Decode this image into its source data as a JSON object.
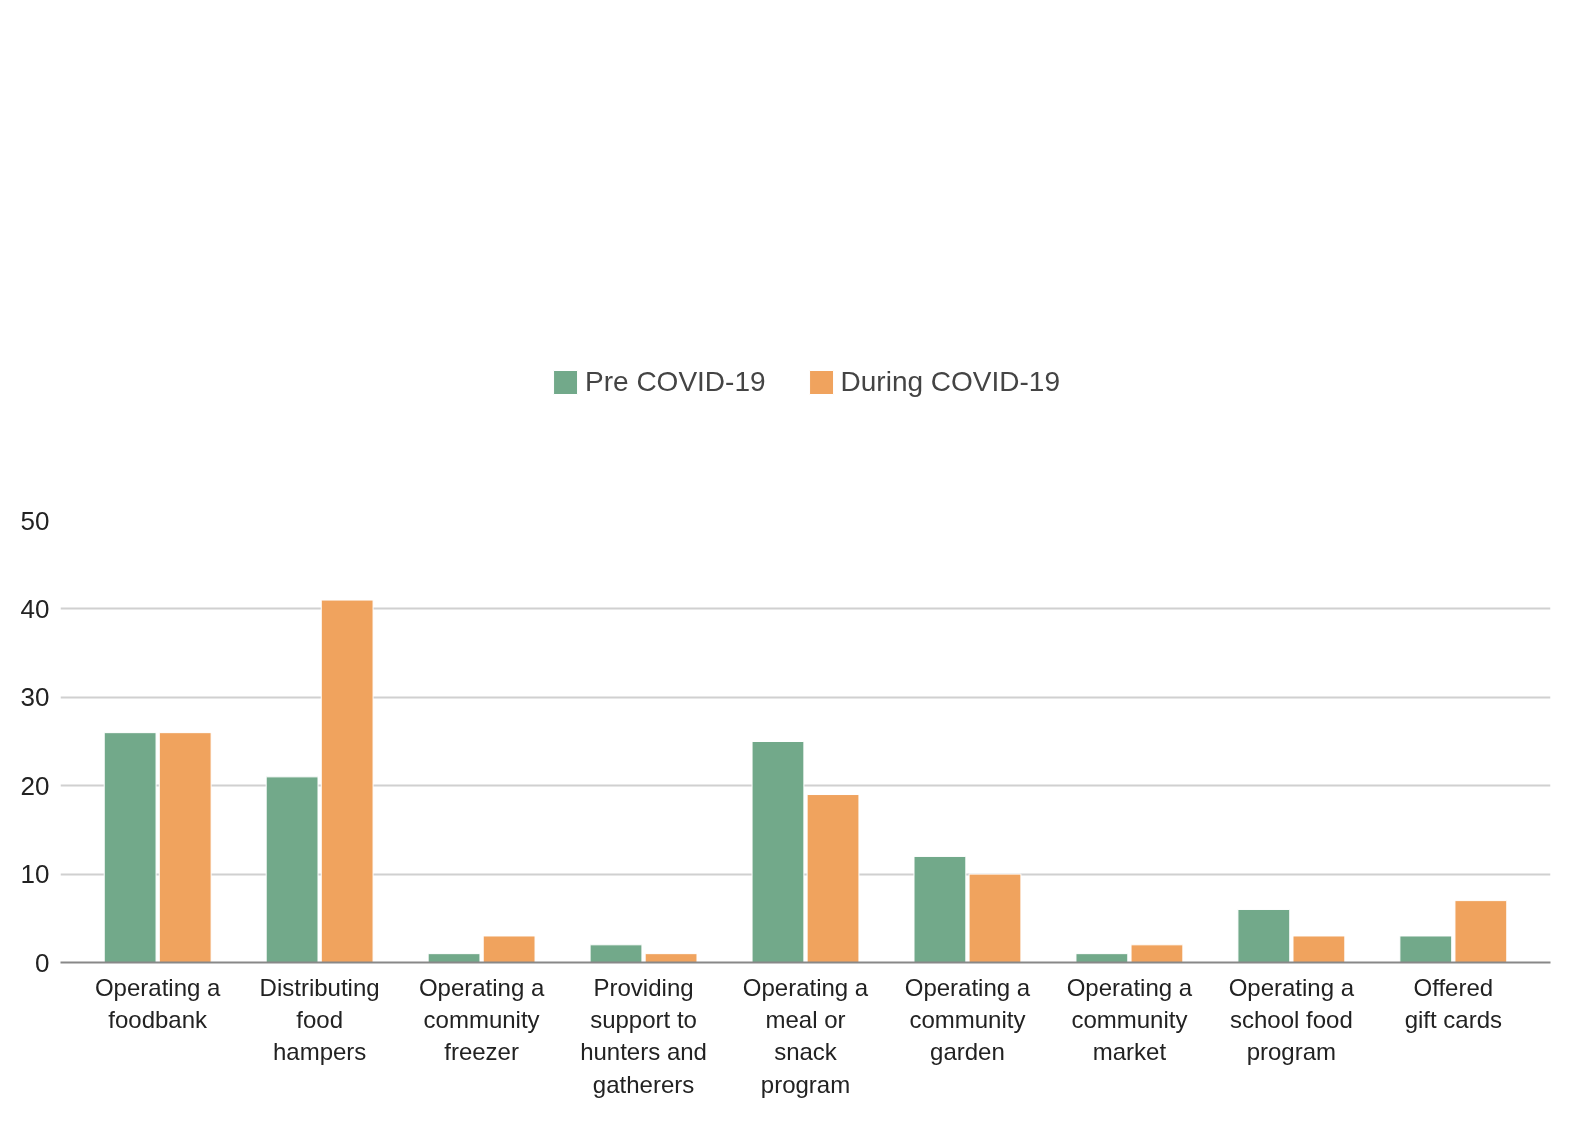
{
  "chart_data": {
    "type": "bar",
    "categories": [
      "Operating a foodbank",
      "Distributing food hampers",
      "Operating a community freezer",
      "Providing support to hunters and gatherers",
      "Operating a meal or snack program",
      "Operating a community garden",
      "Operating a community market",
      "Operating a school food program",
      "Offered gift cards"
    ],
    "series": [
      {
        "name": "Pre COVID-19",
        "color": "#72a98a",
        "values": [
          26,
          21,
          1,
          2,
          25,
          12,
          1,
          6,
          3
        ]
      },
      {
        "name": "During COVID-19",
        "color": "#f0a35e",
        "values": [
          26,
          41,
          3,
          1,
          19,
          10,
          2,
          3,
          7
        ]
      }
    ],
    "ylim": [
      0,
      50
    ],
    "yticks": [
      0,
      10,
      20,
      30,
      40,
      50
    ],
    "grid": "y",
    "legend": "top"
  }
}
